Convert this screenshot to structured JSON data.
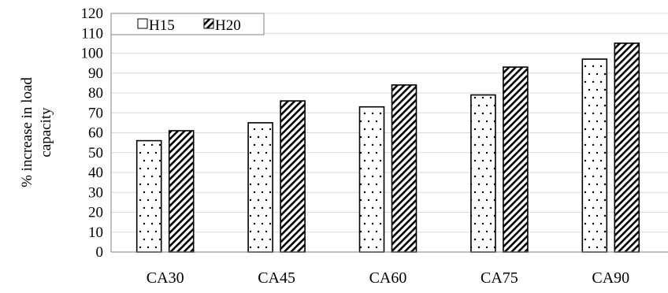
{
  "chart_data": {
    "type": "bar",
    "title": "",
    "xlabel": "",
    "ylabel": [
      "% increase in load",
      "capacity"
    ],
    "categories": [
      "CA30",
      "CA45",
      "CA60",
      "CA75",
      "CA90"
    ],
    "series": [
      {
        "name": "H15",
        "values": [
          56,
          65,
          73,
          79,
          97
        ],
        "pattern": "dots"
      },
      {
        "name": "H20",
        "values": [
          61,
          76,
          84,
          93,
          105
        ],
        "pattern": "diagonal-hatch"
      }
    ],
    "ylim": [
      0,
      120
    ],
    "ytick_step": 10,
    "yticks": [
      "0",
      "10",
      "20",
      "30",
      "40",
      "50",
      "60",
      "70",
      "80",
      "90",
      "100",
      "110",
      "120"
    ],
    "grid": true,
    "legend": "top-left",
    "colors": {
      "bar_edge": "#000000",
      "grid": "#d9d9d9",
      "axis": "#808080",
      "fill": "#ffffff"
    }
  }
}
